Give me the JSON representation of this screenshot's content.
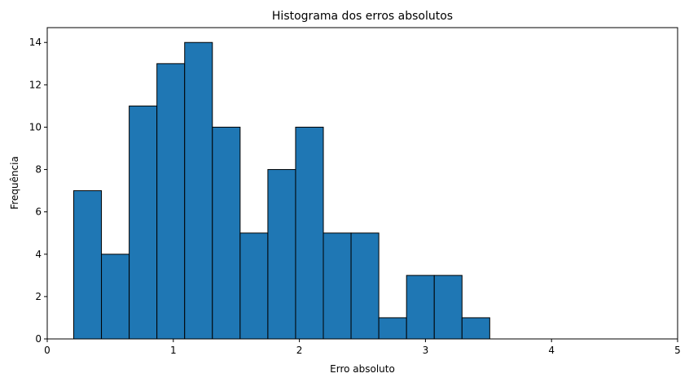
{
  "chart_data": {
    "type": "bar",
    "title": "Histograma dos erros absolutos",
    "xlabel": "Erro absoluto",
    "ylabel": "Frequência",
    "xlim": [
      0,
      5
    ],
    "ylim": [
      0,
      14.7
    ],
    "xticks": [
      "0",
      "1",
      "2",
      "3",
      "4",
      "5"
    ],
    "yticks": [
      "0",
      "2",
      "4",
      "6",
      "8",
      "10",
      "12",
      "14"
    ],
    "bins": [
      {
        "x0": 0.21,
        "x1": 0.43,
        "count": 7
      },
      {
        "x0": 0.43,
        "x1": 0.65,
        "count": 4
      },
      {
        "x0": 0.65,
        "x1": 0.87,
        "count": 11
      },
      {
        "x0": 0.87,
        "x1": 1.09,
        "count": 13
      },
      {
        "x0": 1.09,
        "x1": 1.31,
        "count": 14
      },
      {
        "x0": 1.31,
        "x1": 1.53,
        "count": 10
      },
      {
        "x0": 1.53,
        "x1": 1.75,
        "count": 5
      },
      {
        "x0": 1.75,
        "x1": 1.97,
        "count": 8
      },
      {
        "x0": 1.97,
        "x1": 2.19,
        "count": 10
      },
      {
        "x0": 2.19,
        "x1": 2.41,
        "count": 5
      },
      {
        "x0": 2.41,
        "x1": 2.63,
        "count": 5
      },
      {
        "x0": 2.63,
        "x1": 2.85,
        "count": 1
      },
      {
        "x0": 2.85,
        "x1": 3.07,
        "count": 3
      },
      {
        "x0": 3.07,
        "x1": 3.29,
        "count": 3
      },
      {
        "x0": 3.29,
        "x1": 3.51,
        "count": 1
      }
    ],
    "bar_color": "#1f77b4",
    "edge_color": "#000000",
    "grid": false,
    "legend": "none"
  }
}
